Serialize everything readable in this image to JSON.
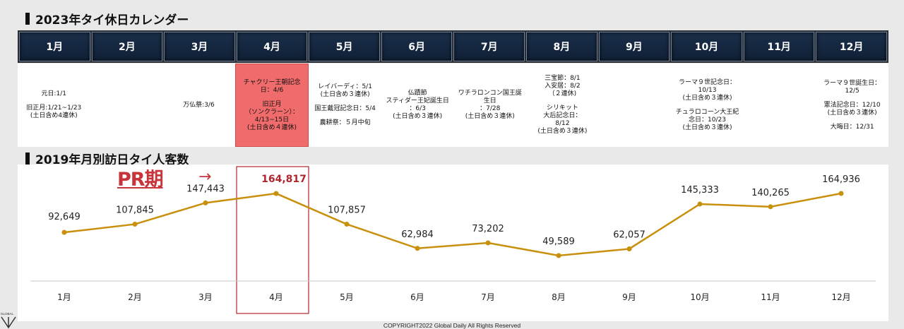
{
  "calendar_title": "2023年タイ休日カレンダー",
  "chart_title": "2019年月別訪日タイ人客数",
  "pr_label": "PR期",
  "arrow": "→",
  "copyright": "COPYRIGHT2022  Global Daily All Rights Reserved",
  "logo_text": "GLOBAL",
  "months": [
    "1月",
    "2月",
    "3月",
    "4月",
    "5月",
    "6月",
    "7月",
    "8月",
    "9月",
    "10月",
    "11月",
    "12月"
  ],
  "holidays": [
    {
      "lines": [
        "元日:1/1",
        "",
        "旧正月:1/21~1/23",
        "(土日含め4連休)"
      ]
    },
    {
      "lines": []
    },
    {
      "lines": [
        "万仏祭:3/6"
      ]
    },
    {
      "lines": [
        "チャクリー王朝記念",
        "日：4/6",
        "",
        "旧正月",
        "（ソンクラーン）：",
        "4/13~15日",
        "(土日含め４連休)"
      ],
      "highlight": true
    },
    {
      "lines": [
        "レイバーディ：5/1",
        "(土日含め３連休)",
        "",
        "国王戴冠記念日：5/4",
        "",
        "農耕祭：５月中旬"
      ]
    },
    {
      "lines": [
        "仏蹟節",
        "スティダー王妃誕生日",
        "：6/3",
        "(土日含め３連休)"
      ]
    },
    {
      "lines": [
        "ワチラロンコン国王誕",
        "生日",
        "：7/28",
        "(土日含め３連休)"
      ]
    },
    {
      "lines": [
        "三宝節：8/1",
        "入安居：8/2",
        "（２連休)",
        "",
        "シリキット",
        "大后記念日：",
        "8/12",
        "(土日含め３連休)"
      ]
    },
    {
      "lines": []
    },
    {
      "lines": [
        "ラーマ９世記念日：",
        "10/13",
        "(土日含め３連休)",
        "",
        "チュラロコーン大王紀",
        "念日：10/23",
        "(土日含め３連休)"
      ]
    },
    {
      "lines": []
    },
    {
      "lines": [
        "ラーマ９世誕生日：",
        "12/5",
        "",
        "憲法記念日：12/10",
        "(土日含め３連休)",
        "",
        "大晦日：12/31"
      ]
    }
  ],
  "chart_data": {
    "type": "line",
    "title": "2019年月別訪日タイ人客数",
    "categories": [
      "1月",
      "2月",
      "3月",
      "4月",
      "5月",
      "6月",
      "7月",
      "8月",
      "9月",
      "10月",
      "11月",
      "12月"
    ],
    "values": [
      92649,
      107845,
      147443,
      164817,
      107857,
      62984,
      73202,
      49589,
      62057,
      145333,
      140265,
      164936
    ],
    "value_labels": [
      "92,649",
      "107,845",
      "147,443",
      "164,817",
      "107,857",
      "62,984",
      "73,202",
      "49,589",
      "62,057",
      "145,333",
      "140,265",
      "164,936"
    ],
    "highlight_index": 3,
    "line_color": "#c8900c",
    "highlight_color": "#b0262c",
    "grid": false
  }
}
